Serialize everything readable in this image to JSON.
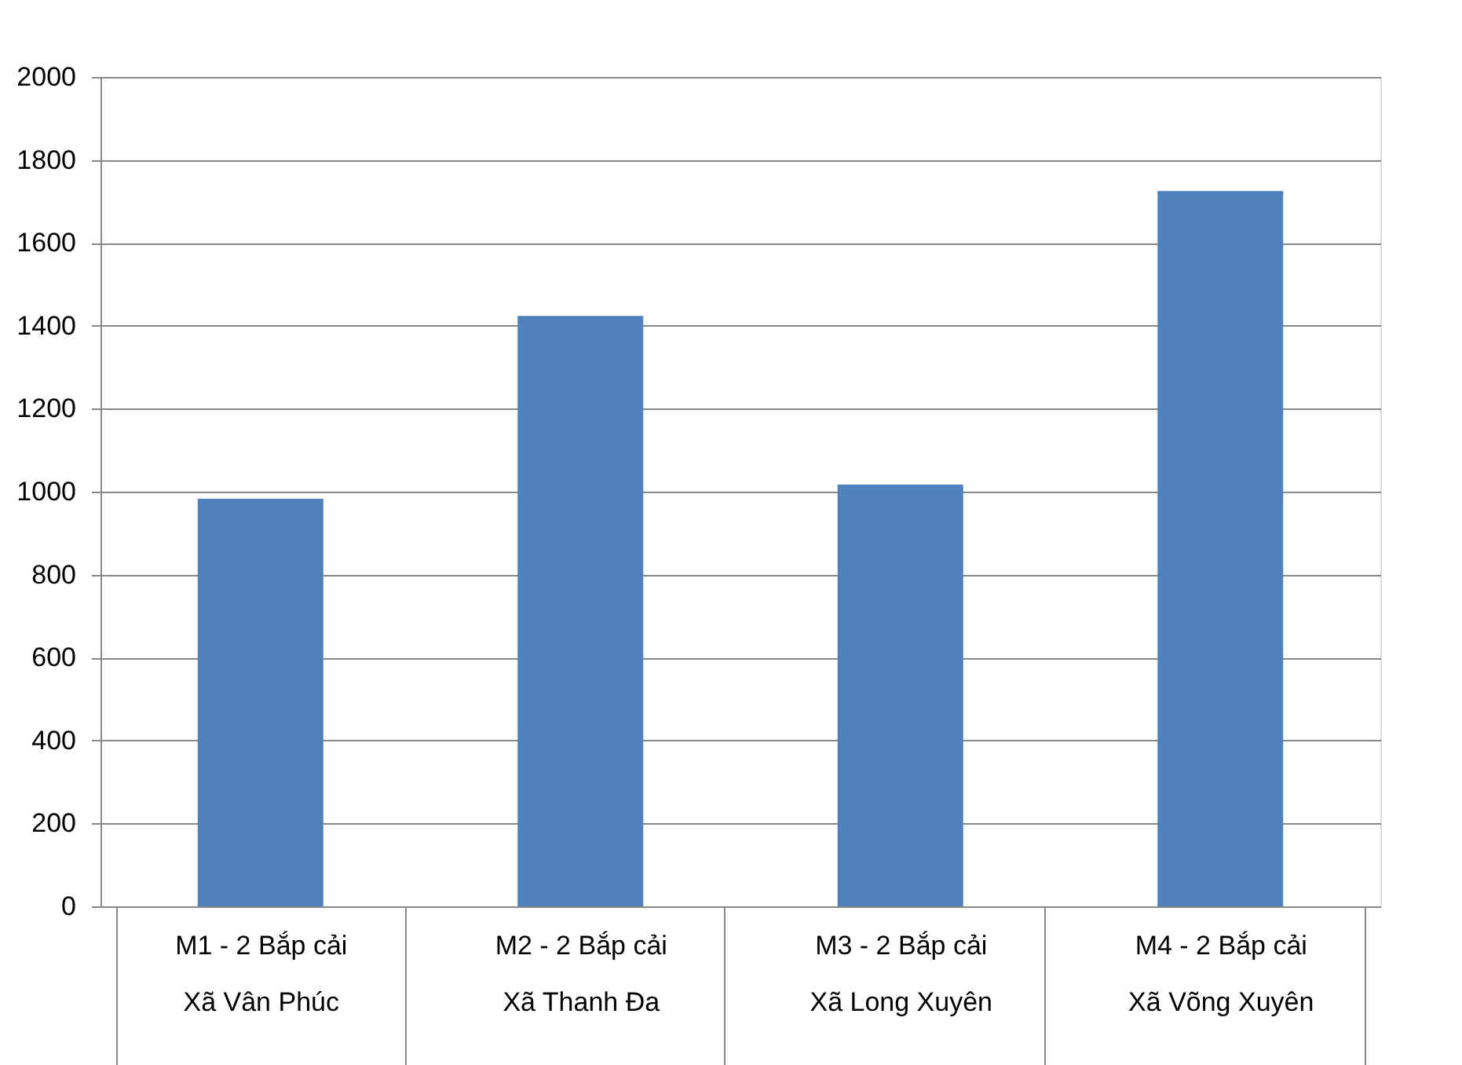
{
  "chart_data": {
    "type": "bar",
    "categories": [
      "M1 - 2 Bắp cải\nXã Vân Phúc",
      "M2 - 2 Bắp cải\nXã Thanh Đa",
      "M3 - 2 Bắp cải\nXã Long Xuyên",
      "M4 - 2 Bắp cải\nXã Võng Xuyên"
    ],
    "values": [
      983,
      1424,
      1017,
      1725
    ],
    "color": "#4f81bd",
    "ylim": [
      0,
      2000
    ],
    "yticks": [
      0,
      200,
      400,
      600,
      800,
      1000,
      1200,
      1400,
      1600,
      1800,
      2000
    ],
    "grid": "y"
  }
}
